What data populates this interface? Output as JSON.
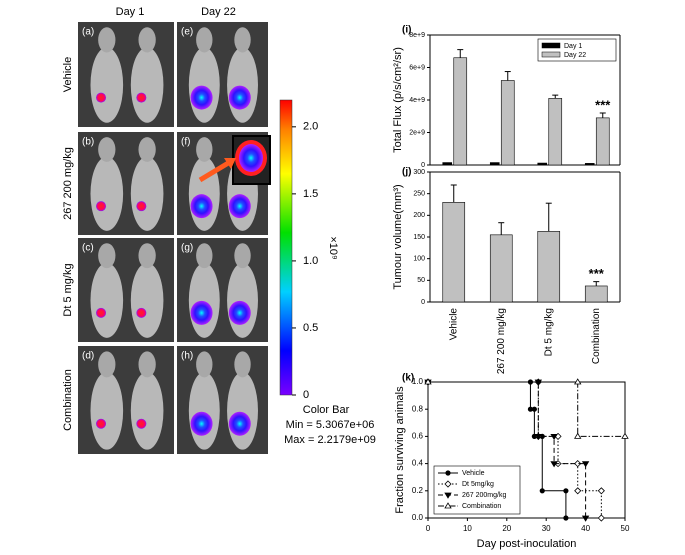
{
  "figure": {
    "column_headers": [
      "Day 1",
      "Day 22"
    ],
    "row_labels": [
      "Vehicle",
      "267 200 mg/kg",
      "Dt 5 mg/kg",
      "Combination"
    ],
    "panel_labels": [
      "(a)",
      "(b)",
      "(c)",
      "(d)",
      "(e)",
      "(f)",
      "(g)",
      "(h)"
    ],
    "colorbar": {
      "scale_label": "×10⁹",
      "lim": [
        0,
        2.2
      ],
      "ticks": [
        0,
        0.5,
        {
          "value": 1,
          "label": "1.0"
        },
        1.5,
        {
          "value": 2,
          "label": "2.0"
        }
      ],
      "title": "Color Bar",
      "min_text": "Min = 5.3067e+06",
      "max_text": "Max = 2.2179e+09"
    }
  },
  "chart_data": [
    {
      "type": "bar",
      "panel": "(i)",
      "ylabel": "Total Flux (p/s/cm²/sr)",
      "annotation": "***",
      "categories": [
        null,
        null,
        null,
        null
      ],
      "series": [
        {
          "name": "Day 1",
          "color": "#000000",
          "values": [
            150000000,
            150000000,
            120000000,
            100000000
          ]
        },
        {
          "name": "Day 22",
          "color": "#c0c0c0",
          "values": [
            6600000000,
            5200000000,
            4100000000,
            2900000000
          ],
          "errors": [
            500000000,
            550000000,
            200000000,
            300000000
          ]
        }
      ],
      "ylim": [
        0,
        8000000000
      ],
      "yticks": [
        0,
        {
          "value": 2000000000,
          "label": "2e+9"
        },
        {
          "value": 4000000000,
          "label": "4e+9"
        },
        {
          "value": 6000000000,
          "label": "6e+9"
        },
        {
          "value": 8000000000,
          "label": "8e+9"
        }
      ],
      "legend": "upper right"
    },
    {
      "type": "bar",
      "panel": "(j)",
      "ylabel": "Tumour volume(mm³)",
      "annotation": "***",
      "categories": [
        "Vehicle",
        "267 200 mg/kg",
        "Dt 5 mg/kg",
        "Combination"
      ],
      "values": [
        230,
        155,
        163,
        37
      ],
      "errors": [
        40,
        28,
        65,
        10
      ],
      "color": "#c0c0c0",
      "ylim": [
        0,
        300
      ],
      "yticks": [
        0,
        50,
        100,
        150,
        200,
        250,
        300
      ]
    },
    {
      "type": "step",
      "panel": "(k)",
      "xlabel": "Day post-inoculation",
      "ylabel": "Fraction surviving animals",
      "series": [
        {
          "name": "Vehicle",
          "color": "#000000",
          "linestyle": "solid",
          "marker": "circle-filled",
          "x": [
            0,
            26,
            26,
            27,
            27,
            29,
            29,
            35,
            35
          ],
          "values": [
            1,
            1,
            0.8,
            0.8,
            0.6,
            0.6,
            0.2,
            0.2,
            0
          ]
        },
        {
          "name": "Dt 5mg/kg",
          "color": "#000000",
          "linestyle": "dotted",
          "marker": "diamond-open",
          "x": [
            0,
            28,
            28,
            33,
            33,
            38,
            38,
            44,
            44
          ],
          "values": [
            1,
            1,
            0.6,
            0.6,
            0.4,
            0.4,
            0.2,
            0.2,
            0
          ]
        },
        {
          "name": "267 200mg/kg",
          "color": "#000000",
          "linestyle": "dashed",
          "marker": "triangle-down-filled",
          "x": [
            0,
            28,
            28,
            32,
            32,
            40,
            40
          ],
          "values": [
            1,
            1,
            0.6,
            0.6,
            0.4,
            0.4,
            0
          ]
        },
        {
          "name": "Combination",
          "color": "#000000",
          "linestyle": "dashdot",
          "marker": "triangle-up-open",
          "x": [
            0,
            38,
            38,
            50
          ],
          "values": [
            1,
            1,
            0.6,
            0.6
          ]
        }
      ],
      "xlim": [
        0,
        50
      ],
      "xticks": [
        0,
        10,
        20,
        30,
        40,
        50
      ],
      "ylim": [
        0,
        1
      ],
      "yticks": [
        {
          "value": 0,
          "label": "0.0"
        },
        {
          "value": 0.2,
          "label": "0.2"
        },
        {
          "value": 0.4,
          "label": "0.4"
        },
        {
          "value": 0.6,
          "label": "0.6"
        },
        {
          "value": 0.8,
          "label": "0.8"
        },
        {
          "value": 1,
          "label": "1.0"
        }
      ],
      "legend": "lower left"
    }
  ]
}
